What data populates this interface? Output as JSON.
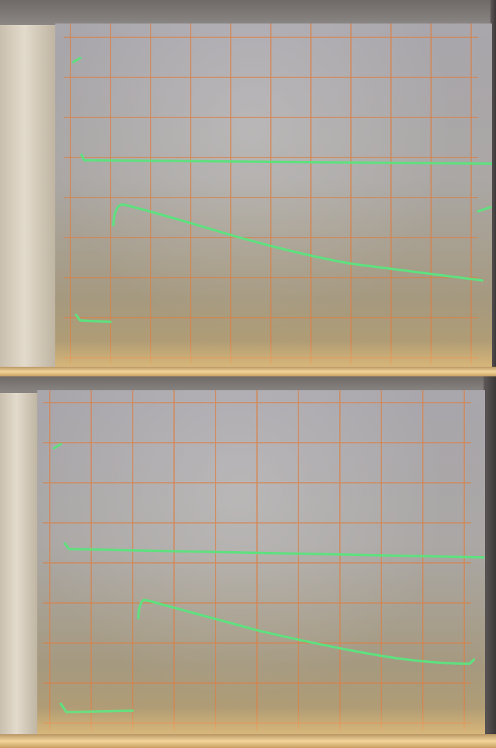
{
  "photos": [
    {
      "id": "top",
      "traces": [
        {
          "name": "reference-trace",
          "color": "#5fe07f"
        },
        {
          "name": "decay-trace",
          "color": "#5fe07f"
        },
        {
          "name": "baseline-trace",
          "color": "#5fe07f"
        }
      ]
    },
    {
      "id": "bottom",
      "traces": [
        {
          "name": "reference-trace",
          "color": "#5fe07f"
        },
        {
          "name": "decay-trace",
          "color": "#5fe07f"
        },
        {
          "name": "baseline-trace",
          "color": "#5fe07f"
        }
      ]
    }
  ],
  "colors": {
    "grid": "#d9824a",
    "trace": "#5fe07f",
    "screen": "#a9a6ac"
  }
}
